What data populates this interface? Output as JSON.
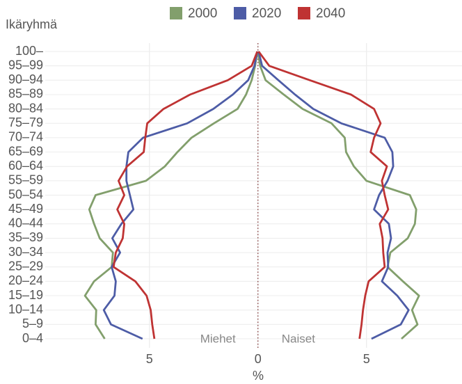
{
  "chart_data": {
    "type": "pyramid-line",
    "y_axis_title": "Ikäryhmä",
    "x_axis_title": "%",
    "annotations": {
      "left": "Miehet",
      "right": "Naiset"
    },
    "categories": [
      "0–4",
      "5–9",
      "10–14",
      "15–19",
      "20–24",
      "25–29",
      "30–34",
      "35–39",
      "40–44",
      "45–49",
      "50–54",
      "55–59",
      "60–64",
      "65–69",
      "70–74",
      "75–79",
      "80–84",
      "85–89",
      "90–94",
      "95–99",
      "100–"
    ],
    "xlim": [
      -9.8,
      9.4
    ],
    "xticks": [
      {
        "value": -5,
        "label": "5"
      },
      0,
      5
    ],
    "grid": true,
    "legend": "top",
    "series": [
      {
        "name": "2000",
        "color": "#829f6c",
        "male_values": [
          -7.06,
          -7.48,
          -7.45,
          -7.97,
          -7.55,
          -6.74,
          -6.68,
          -7.29,
          -7.55,
          -7.77,
          -7.48,
          -5.16,
          -4.29,
          -3.71,
          -3.06,
          -2.03,
          -0.94,
          -0.55,
          -0.29,
          -0.13,
          -0.03
        ],
        "female_values": [
          6.61,
          7.35,
          7.1,
          7.42,
          6.68,
          5.97,
          6.1,
          6.9,
          7.23,
          7.29,
          7.0,
          5.0,
          4.42,
          4.06,
          4.0,
          3.39,
          2.06,
          1.19,
          0.35,
          0.1,
          0.0
        ]
      },
      {
        "name": "2020",
        "color": "#4d5ca6",
        "male_values": [
          -5.32,
          -6.77,
          -7.1,
          -6.61,
          -6.55,
          -6.74,
          -6.35,
          -6.71,
          -6.29,
          -5.74,
          -5.9,
          -6.06,
          -6.06,
          -5.97,
          -5.29,
          -3.26,
          -2.06,
          -1.16,
          -0.45,
          -0.16,
          -0.03
        ],
        "female_values": [
          5.23,
          6.58,
          6.94,
          6.42,
          5.71,
          6.0,
          5.97,
          6.13,
          6.03,
          5.35,
          5.58,
          5.97,
          6.23,
          6.19,
          5.84,
          3.84,
          2.55,
          1.71,
          0.94,
          0.19,
          0.03
        ]
      },
      {
        "name": "2040",
        "color": "#bf3333",
        "male_values": [
          -4.77,
          -4.87,
          -4.94,
          -5.13,
          -5.65,
          -6.65,
          -6.55,
          -6.23,
          -6.16,
          -6.48,
          -6.16,
          -6.42,
          -6.03,
          -5.26,
          -5.19,
          -5.1,
          -4.35,
          -3.13,
          -1.39,
          -0.29,
          -0.03
        ],
        "female_values": [
          4.68,
          4.77,
          4.84,
          4.94,
          5.1,
          5.84,
          5.77,
          5.74,
          5.61,
          6.0,
          5.84,
          5.71,
          5.94,
          5.19,
          5.35,
          5.65,
          5.35,
          4.29,
          2.39,
          0.52,
          0.03
        ]
      }
    ]
  }
}
